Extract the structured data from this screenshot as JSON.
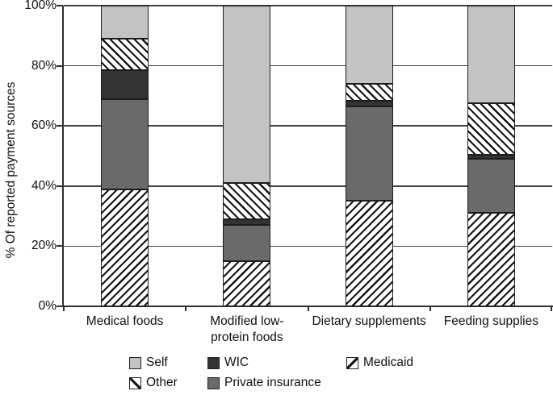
{
  "chart_data": {
    "type": "bar",
    "stacked": true,
    "title": "",
    "xlabel": "",
    "ylabel": "% Of reported payment sources",
    "ylim": [
      0,
      100
    ],
    "grid": true,
    "legend_position": "bottom",
    "ytick_values": [
      0,
      20,
      40,
      60,
      80,
      100
    ],
    "ytick_labels": [
      "0%",
      "20%",
      "40%",
      "60%",
      "80%",
      "100%"
    ],
    "categories": [
      "Medical foods",
      "Modified low-protein foods",
      "Dietary supplements",
      "Feeding supplies"
    ],
    "category_label_lines": [
      [
        "Medical foods"
      ],
      [
        "Modified low-",
        "protein foods"
      ],
      [
        "Dietary supplements"
      ],
      [
        "Feeding supplies"
      ]
    ],
    "series": [
      {
        "name": "Medicaid",
        "style": "hatch-forward",
        "fill": "#ffffff",
        "hatch_color": "#161616",
        "values": [
          39,
          15,
          35,
          31
        ]
      },
      {
        "name": "Private insurance",
        "style": "solid",
        "fill": "#6a6a6a",
        "values": [
          30,
          12,
          31.5,
          18
        ]
      },
      {
        "name": "WIC",
        "style": "solid",
        "fill": "#333333",
        "values": [
          9.5,
          2,
          2,
          1.5
        ]
      },
      {
        "name": "Other",
        "style": "hatch-back",
        "fill": "#ffffff",
        "hatch_color": "#161616",
        "values": [
          10.5,
          12,
          5.5,
          17
        ]
      },
      {
        "name": "Self",
        "style": "solid",
        "fill": "#c3c3c3",
        "values": [
          11,
          59,
          26,
          32.5
        ]
      }
    ],
    "legend_rows": [
      [
        "Self",
        "WIC",
        "Medicaid"
      ],
      [
        "Other",
        "Private insurance"
      ]
    ]
  },
  "colors": {
    "axis": "#2e2e2e",
    "grid": "#414141",
    "text": "#101010",
    "segment_border": "#1c1c1c"
  }
}
